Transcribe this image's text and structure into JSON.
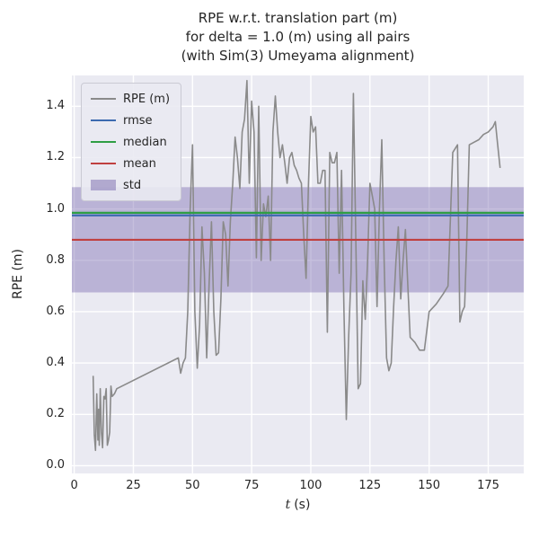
{
  "title_lines": [
    "RPE w.r.t. translation part (m)",
    "for delta = 1.0 (m) using all pairs",
    "(with Sim(3) Umeyama alignment)"
  ],
  "ylabel": "RPE (m)",
  "xlabel_var": "t",
  "xlabel_unit": "(s)",
  "colors": {
    "axes_background": "#eaeaf2",
    "grid": "#ffffff",
    "text": "#262626",
    "rpe_line": "#8a8a8a",
    "rmse_line": "#3c6ab0",
    "median_line": "#2f9e44",
    "mean_line": "#c04040",
    "std_band": "#8172b3"
  },
  "chart_data": {
    "type": "line",
    "title": "RPE w.r.t. translation part (m) for delta = 1.0 (m) using all pairs (with Sim(3) Umeyama alignment)",
    "xlabel": "t (s)",
    "ylabel": "RPE (m)",
    "xlim": [
      -1,
      190
    ],
    "ylim": [
      -0.03,
      1.52
    ],
    "xticks": [
      0,
      25,
      50,
      75,
      100,
      125,
      150,
      175
    ],
    "yticks": [
      0.0,
      0.2,
      0.4,
      0.6,
      0.8,
      1.0,
      1.2,
      1.4
    ],
    "grid": true,
    "legend_position": "upper-left",
    "series": [
      {
        "name": "RPE (m)",
        "type": "line",
        "color": "#8a8a8a",
        "points": [
          [
            8,
            0.35
          ],
          [
            8.5,
            0.12
          ],
          [
            9,
            0.06
          ],
          [
            9.5,
            0.28
          ],
          [
            10,
            0.1
          ],
          [
            10.3,
            0.22
          ],
          [
            10.6,
            0.08
          ],
          [
            11,
            0.3
          ],
          [
            11.5,
            0.13
          ],
          [
            12,
            0.07
          ],
          [
            12.5,
            0.27
          ],
          [
            13,
            0.26
          ],
          [
            13.5,
            0.3
          ],
          [
            14,
            0.08
          ],
          [
            14.5,
            0.1
          ],
          [
            15,
            0.13
          ],
          [
            15.5,
            0.31
          ],
          [
            16,
            0.27
          ],
          [
            17,
            0.28
          ],
          [
            18,
            0.3
          ],
          [
            44,
            0.42
          ],
          [
            45,
            0.36
          ],
          [
            46,
            0.4
          ],
          [
            47,
            0.42
          ],
          [
            48,
            0.6
          ],
          [
            49,
            1.0
          ],
          [
            50,
            1.25
          ],
          [
            51,
            0.6
          ],
          [
            52,
            0.38
          ],
          [
            53,
            0.55
          ],
          [
            54,
            0.93
          ],
          [
            55,
            0.75
          ],
          [
            56,
            0.42
          ],
          [
            57,
            0.7
          ],
          [
            58,
            0.95
          ],
          [
            59,
            0.6
          ],
          [
            60,
            0.43
          ],
          [
            61,
            0.44
          ],
          [
            62,
            0.65
          ],
          [
            63,
            0.95
          ],
          [
            64,
            0.9
          ],
          [
            65,
            0.7
          ],
          [
            66,
            0.95
          ],
          [
            67,
            1.1
          ],
          [
            68,
            1.28
          ],
          [
            69,
            1.2
          ],
          [
            70,
            1.08
          ],
          [
            71,
            1.3
          ],
          [
            72,
            1.35
          ],
          [
            73,
            1.5
          ],
          [
            74,
            1.1
          ],
          [
            75,
            1.42
          ],
          [
            76,
            1.3
          ],
          [
            77,
            0.81
          ],
          [
            78,
            1.4
          ],
          [
            79,
            0.8
          ],
          [
            80,
            1.02
          ],
          [
            81,
            0.97
          ],
          [
            82,
            1.05
          ],
          [
            83,
            0.8
          ],
          [
            84,
            1.3
          ],
          [
            85,
            1.44
          ],
          [
            86,
            1.3
          ],
          [
            87,
            1.2
          ],
          [
            88,
            1.25
          ],
          [
            89,
            1.18
          ],
          [
            90,
            1.1
          ],
          [
            91,
            1.2
          ],
          [
            92,
            1.22
          ],
          [
            93,
            1.17
          ],
          [
            94,
            1.15
          ],
          [
            95,
            1.12
          ],
          [
            96,
            1.1
          ],
          [
            97,
            0.9
          ],
          [
            98,
            0.73
          ],
          [
            99,
            1.1
          ],
          [
            100,
            1.36
          ],
          [
            101,
            1.3
          ],
          [
            102,
            1.32
          ],
          [
            103,
            1.1
          ],
          [
            104,
            1.1
          ],
          [
            105,
            1.15
          ],
          [
            106,
            1.15
          ],
          [
            107,
            0.52
          ],
          [
            108,
            1.22
          ],
          [
            109,
            1.18
          ],
          [
            110,
            1.18
          ],
          [
            111,
            1.22
          ],
          [
            112,
            0.75
          ],
          [
            113,
            1.15
          ],
          [
            114,
            0.6
          ],
          [
            115,
            0.18
          ],
          [
            116,
            0.5
          ],
          [
            117,
            0.75
          ],
          [
            118,
            1.45
          ],
          [
            119,
            0.9
          ],
          [
            120,
            0.3
          ],
          [
            121,
            0.32
          ],
          [
            122,
            0.72
          ],
          [
            123,
            0.57
          ],
          [
            124,
            0.8
          ],
          [
            125,
            1.1
          ],
          [
            126,
            1.05
          ],
          [
            127,
            1.0
          ],
          [
            128,
            0.62
          ],
          [
            129,
            1.0
          ],
          [
            130,
            1.27
          ],
          [
            131,
            0.8
          ],
          [
            132,
            0.42
          ],
          [
            133,
            0.37
          ],
          [
            134,
            0.4
          ],
          [
            135,
            0.62
          ],
          [
            136,
            0.8
          ],
          [
            137,
            0.93
          ],
          [
            138,
            0.65
          ],
          [
            139,
            0.8
          ],
          [
            140,
            0.92
          ],
          [
            141,
            0.7
          ],
          [
            142,
            0.5
          ],
          [
            144,
            0.48
          ],
          [
            146,
            0.45
          ],
          [
            148,
            0.45
          ],
          [
            150,
            0.6
          ],
          [
            153,
            0.63
          ],
          [
            156,
            0.67
          ],
          [
            158,
            0.7
          ],
          [
            160,
            1.22
          ],
          [
            162,
            1.25
          ],
          [
            163,
            0.56
          ],
          [
            164,
            0.6
          ],
          [
            165,
            0.62
          ],
          [
            166,
            0.9
          ],
          [
            167,
            1.25
          ],
          [
            169,
            1.26
          ],
          [
            171,
            1.27
          ],
          [
            173,
            1.29
          ],
          [
            175,
            1.3
          ],
          [
            177,
            1.32
          ],
          [
            178,
            1.34
          ],
          [
            179,
            1.25
          ],
          [
            180,
            1.16
          ]
        ]
      },
      {
        "name": "rmse",
        "type": "hline",
        "color": "#3c6ab0",
        "value": 0.975
      },
      {
        "name": "median",
        "type": "hline",
        "color": "#2f9e44",
        "value": 0.985
      },
      {
        "name": "mean",
        "type": "hline",
        "color": "#c04040",
        "value": 0.88
      },
      {
        "name": "std",
        "type": "hband",
        "color": "#8172b3",
        "range": [
          0.675,
          1.085
        ]
      }
    ]
  }
}
